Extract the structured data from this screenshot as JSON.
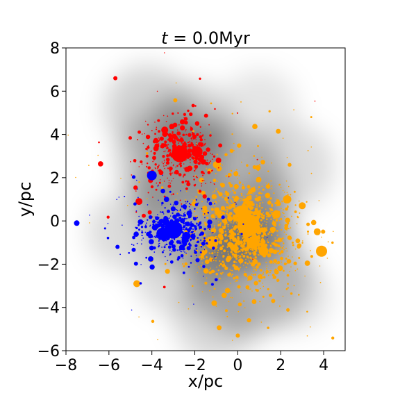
{
  "chart_data": {
    "type": "scatter",
    "title": "t = 0.0Myr",
    "title_var": "t",
    "title_eq": " = 0.0Myr",
    "xlabel": "x/pc",
    "ylabel": "y/pc",
    "xlim": [
      -8,
      5
    ],
    "ylim": [
      -6,
      8
    ],
    "xticks": [
      -8,
      -6,
      -4,
      -2,
      0,
      2,
      4
    ],
    "yticks": [
      -6,
      -4,
      -2,
      0,
      2,
      4,
      6,
      8
    ],
    "xtick_labels": [
      "−8",
      "−6",
      "−4",
      "−2",
      "0",
      "2",
      "4"
    ],
    "ytick_labels": [
      "−6",
      "−4",
      "−2",
      "0",
      "2",
      "4",
      "6",
      "8"
    ],
    "grid": false,
    "background": "grayscale gas density map",
    "colors": {
      "orange": "#ffa500",
      "red": "#ff0000",
      "blue": "#0000ff"
    },
    "series": [
      {
        "color": "orange",
        "cluster": {
          "center": [
            0.4,
            -0.5
          ],
          "sx": 1.2,
          "sy": 1.3,
          "n": 1300
        },
        "big_points": [
          {
            "x": 0.5,
            "y": -0.2,
            "s": 16
          },
          {
            "x": 0.2,
            "y": 0.4,
            "s": 10
          },
          {
            "x": 0.7,
            "y": -1.0,
            "s": 9
          },
          {
            "x": -1.2,
            "y": -1.0,
            "s": 9
          },
          {
            "x": 1.2,
            "y": -1.4,
            "s": 7
          },
          {
            "x": 1.8,
            "y": 0.3,
            "s": 6
          },
          {
            "x": 3.9,
            "y": -1.4,
            "s": 8
          },
          {
            "x": -4.7,
            "y": -2.9,
            "s": 5
          },
          {
            "x": -1.0,
            "y": 2.6,
            "s": 5
          },
          {
            "x": 2.3,
            "y": 1.0,
            "s": 6
          },
          {
            "x": 3.0,
            "y": 0.7,
            "s": 5
          },
          {
            "x": -1.1,
            "y": -3.8,
            "s": 4
          },
          {
            "x": 0.0,
            "y": -5.3,
            "s": 3
          },
          {
            "x": 3.7,
            "y": -0.5,
            "s": 5
          }
        ]
      },
      {
        "color": "red",
        "cluster": {
          "center": [
            -2.7,
            3.1
          ],
          "sx": 0.9,
          "sy": 0.8,
          "n": 420
        },
        "big_points": [
          {
            "x": -2.7,
            "y": 3.1,
            "s": 12
          },
          {
            "x": -1.9,
            "y": 3.2,
            "s": 8
          },
          {
            "x": -3.4,
            "y": 4.2,
            "s": 5
          },
          {
            "x": -4.6,
            "y": 0.9,
            "s": 5
          },
          {
            "x": -5.7,
            "y": 6.6,
            "s": 3
          },
          {
            "x": -2.3,
            "y": 1.7,
            "s": 3
          },
          {
            "x": -0.9,
            "y": 2.8,
            "s": 4
          },
          {
            "x": -4.1,
            "y": 0.4,
            "s": 3
          }
        ]
      },
      {
        "color": "blue",
        "cluster": {
          "center": [
            -3.0,
            -0.4
          ],
          "sx": 0.8,
          "sy": 0.6,
          "n": 520
        },
        "big_points": [
          {
            "x": -3.0,
            "y": -0.4,
            "s": 13
          },
          {
            "x": -3.5,
            "y": -0.6,
            "s": 9
          },
          {
            "x": -4.0,
            "y": 2.1,
            "s": 7
          },
          {
            "x": -7.5,
            "y": -0.1,
            "s": 4
          },
          {
            "x": -2.4,
            "y": -0.7,
            "s": 6
          },
          {
            "x": -5.6,
            "y": -1.2,
            "s": 3
          }
        ]
      }
    ]
  }
}
